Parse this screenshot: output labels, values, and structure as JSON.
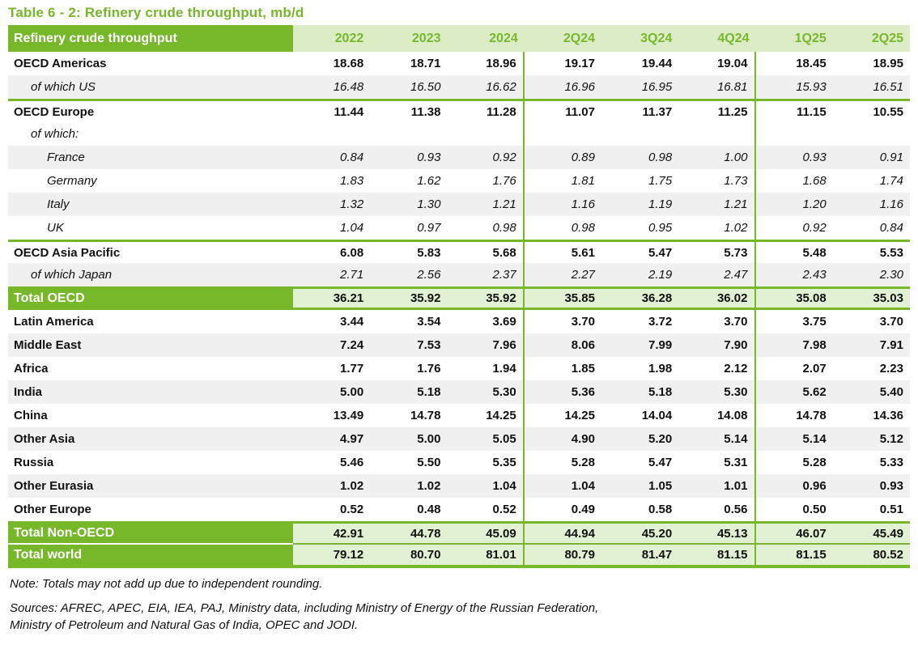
{
  "title": "Table 6 - 2: Refinery crude throughput, mb/d",
  "table": {
    "header_label": "Refinery crude throughput",
    "columns": [
      "2022",
      "2023",
      "2024",
      "2Q24",
      "3Q24",
      "4Q24",
      "1Q25",
      "2Q25"
    ],
    "vertical_dividers_after_columns": [
      "2024",
      "4Q24"
    ],
    "rows": [
      {
        "label": "OECD Americas",
        "type": "main",
        "shaded": false,
        "indent": 0,
        "values": [
          "18.68",
          "18.71",
          "18.96",
          "19.17",
          "19.44",
          "19.04",
          "18.45",
          "18.95"
        ]
      },
      {
        "label": "of which US",
        "type": "sub",
        "shaded": true,
        "indent": 1,
        "values": [
          "16.48",
          "16.50",
          "16.62",
          "16.96",
          "16.95",
          "16.81",
          "15.93",
          "16.51"
        ]
      },
      {
        "label": "OECD Europe",
        "type": "main",
        "shaded": false,
        "indent": 0,
        "divider_above": true,
        "values": [
          "11.44",
          "11.38",
          "11.28",
          "11.07",
          "11.37",
          "11.25",
          "11.15",
          "10.55"
        ]
      },
      {
        "label": "of which:",
        "type": "sub",
        "shaded": false,
        "indent": 1,
        "values": [
          "",
          "",
          "",
          "",
          "",
          "",
          "",
          ""
        ]
      },
      {
        "label": "France",
        "type": "sub",
        "shaded": true,
        "indent": 2,
        "values": [
          "0.84",
          "0.93",
          "0.92",
          "0.89",
          "0.98",
          "1.00",
          "0.93",
          "0.91"
        ]
      },
      {
        "label": "Germany",
        "type": "sub",
        "shaded": false,
        "indent": 2,
        "values": [
          "1.83",
          "1.62",
          "1.76",
          "1.81",
          "1.75",
          "1.73",
          "1.68",
          "1.74"
        ]
      },
      {
        "label": "Italy",
        "type": "sub",
        "shaded": true,
        "indent": 2,
        "values": [
          "1.32",
          "1.30",
          "1.21",
          "1.16",
          "1.19",
          "1.21",
          "1.20",
          "1.16"
        ]
      },
      {
        "label": "UK",
        "type": "sub",
        "shaded": false,
        "indent": 2,
        "values": [
          "1.04",
          "0.97",
          "0.98",
          "0.98",
          "0.95",
          "1.02",
          "0.92",
          "0.84"
        ]
      },
      {
        "label": "OECD Asia Pacific",
        "type": "main",
        "shaded": false,
        "indent": 0,
        "divider_above": true,
        "values": [
          "6.08",
          "5.83",
          "5.68",
          "5.61",
          "5.47",
          "5.73",
          "5.48",
          "5.53"
        ]
      },
      {
        "label": "of which Japan",
        "type": "sub",
        "shaded": true,
        "indent": 1,
        "values": [
          "2.71",
          "2.56",
          "2.37",
          "2.27",
          "2.19",
          "2.47",
          "2.43",
          "2.30"
        ]
      },
      {
        "label": "Total OECD",
        "type": "total",
        "values": [
          "36.21",
          "35.92",
          "35.92",
          "35.85",
          "36.28",
          "36.02",
          "35.08",
          "35.03"
        ]
      },
      {
        "label": "Latin America",
        "type": "main",
        "shaded": false,
        "indent": 0,
        "values": [
          "3.44",
          "3.54",
          "3.69",
          "3.70",
          "3.72",
          "3.70",
          "3.75",
          "3.70"
        ]
      },
      {
        "label": "Middle East",
        "type": "main",
        "shaded": true,
        "indent": 0,
        "values": [
          "7.24",
          "7.53",
          "7.96",
          "8.06",
          "7.99",
          "7.90",
          "7.98",
          "7.91"
        ]
      },
      {
        "label": "Africa",
        "type": "main",
        "shaded": false,
        "indent": 0,
        "values": [
          "1.77",
          "1.76",
          "1.94",
          "1.85",
          "1.98",
          "2.12",
          "2.07",
          "2.23"
        ]
      },
      {
        "label": "India",
        "type": "main",
        "shaded": true,
        "indent": 0,
        "values": [
          "5.00",
          "5.18",
          "5.30",
          "5.36",
          "5.18",
          "5.30",
          "5.62",
          "5.40"
        ]
      },
      {
        "label": "China",
        "type": "main",
        "shaded": false,
        "indent": 0,
        "values": [
          "13.49",
          "14.78",
          "14.25",
          "14.25",
          "14.04",
          "14.08",
          "14.78",
          "14.36"
        ]
      },
      {
        "label": "Other Asia",
        "type": "main",
        "shaded": true,
        "indent": 0,
        "values": [
          "4.97",
          "5.00",
          "5.05",
          "4.90",
          "5.20",
          "5.14",
          "5.14",
          "5.12"
        ]
      },
      {
        "label": "Russia",
        "type": "main",
        "shaded": false,
        "indent": 0,
        "values": [
          "5.46",
          "5.50",
          "5.35",
          "5.28",
          "5.47",
          "5.31",
          "5.28",
          "5.33"
        ]
      },
      {
        "label": "Other Eurasia",
        "type": "main",
        "shaded": true,
        "indent": 0,
        "values": [
          "1.02",
          "1.02",
          "1.04",
          "1.04",
          "1.05",
          "1.01",
          "0.96",
          "0.93"
        ]
      },
      {
        "label": "Other Europe",
        "type": "main",
        "shaded": false,
        "indent": 0,
        "values": [
          "0.52",
          "0.48",
          "0.52",
          "0.49",
          "0.58",
          "0.56",
          "0.50",
          "0.51"
        ]
      },
      {
        "label": "Total Non-OECD",
        "type": "total",
        "values": [
          "42.91",
          "44.78",
          "45.09",
          "44.94",
          "45.20",
          "45.13",
          "46.07",
          "45.49"
        ]
      },
      {
        "label": "Total world",
        "type": "total",
        "values": [
          "79.12",
          "80.70",
          "81.01",
          "80.79",
          "81.47",
          "81.15",
          "81.15",
          "80.52"
        ]
      }
    ]
  },
  "note": "Note: Totals may not add up due to independent rounding.",
  "sources_line1": "Sources: AFREC, APEC, EIA, IEA, PAJ, Ministry data, including Ministry of Energy of the Russian Federation,",
  "sources_line2": "Ministry of Petroleum and Natural Gas of India, OPEC and JODI.",
  "colors": {
    "accent_green": "#76b82a",
    "header_light_green": "#dcecc6",
    "total_light_green": "#e2f0d4",
    "row_stripe": "#f0f0f0"
  }
}
